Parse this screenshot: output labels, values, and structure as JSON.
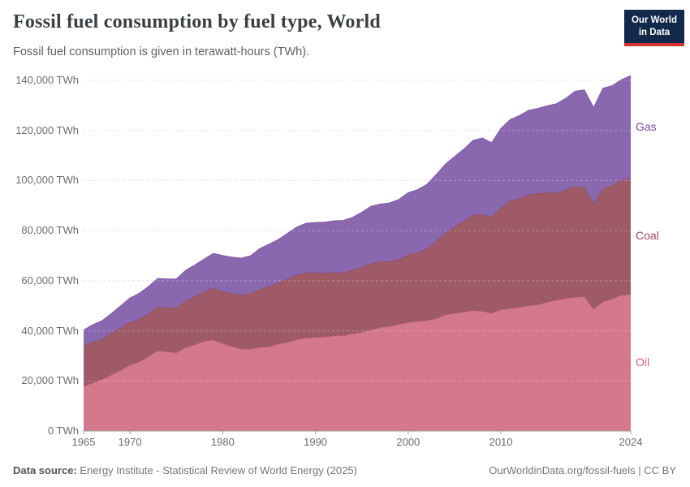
{
  "header": {
    "title": "Fossil fuel consumption by fuel type, World",
    "subtitle": "Fossil fuel consumption is given in terawatt-hours (TWh)."
  },
  "logo": {
    "line1": "Our World",
    "line2": "in Data"
  },
  "colors": {
    "background": "#ffffff",
    "title": "#3a3f44",
    "subtitle": "#5f6163",
    "axis_label": "#6c6c6c",
    "gridline": "#dcdcdc",
    "grid_overlay": "rgba(255,255,255,0.3)",
    "axis_line": "#999999",
    "tick_mark": "#999999",
    "logo_background": "#12294c",
    "logo_accent_red": "#d0342e",
    "footer_text": "#757575"
  },
  "chart_data": {
    "type": "area",
    "stacked": true,
    "title": "Fossil fuel consumption by fuel type, World",
    "xlabel": "",
    "ylabel": "TWh",
    "grid": true,
    "legend_position": "right",
    "xlim": [
      1965,
      2024
    ],
    "ylim": [
      0,
      140000
    ],
    "x_ticks": [
      1965,
      1970,
      1980,
      1990,
      2000,
      2010,
      2024
    ],
    "x_tick_labels": [
      "1965",
      "1970",
      "1980",
      "1990",
      "2000",
      "2010",
      "2024"
    ],
    "y_ticks": [
      0,
      20000,
      40000,
      60000,
      80000,
      100000,
      120000,
      140000
    ],
    "y_tick_labels": [
      "0 TWh",
      "20,000 TWh",
      "40,000 TWh",
      "60,000 TWh",
      "80,000 TWh",
      "100,000 TWh",
      "120,000 TWh",
      "140,000 TWh"
    ],
    "x": [
      1965,
      1966,
      1967,
      1968,
      1969,
      1970,
      1971,
      1972,
      1973,
      1974,
      1975,
      1976,
      1977,
      1978,
      1979,
      1980,
      1981,
      1982,
      1983,
      1984,
      1985,
      1986,
      1987,
      1988,
      1989,
      1990,
      1991,
      1992,
      1993,
      1994,
      1995,
      1996,
      1997,
      1998,
      1999,
      2000,
      2001,
      2002,
      2003,
      2004,
      2005,
      2006,
      2007,
      2008,
      2009,
      2010,
      2011,
      2012,
      2013,
      2014,
      2015,
      2016,
      2017,
      2018,
      2019,
      2020,
      2021,
      2022,
      2023,
      2024
    ],
    "series": [
      {
        "name": "Oil",
        "fill": "#d4798b",
        "edge": "#c4607a",
        "label_color": "#d0647e",
        "values": [
          17887,
          19201,
          20619,
          22382,
          24244,
          26390,
          27645,
          29700,
          32043,
          31616,
          31167,
          33361,
          34485,
          35822,
          36338,
          34924,
          33734,
          32771,
          32667,
          33461,
          33611,
          34697,
          35363,
          36441,
          37099,
          37380,
          37513,
          38060,
          37983,
          38843,
          39404,
          40348,
          41374,
          41746,
          42626,
          43364,
          43736,
          44077,
          44897,
          46368,
          47005,
          47497,
          48135,
          47796,
          47043,
          48439,
          48914,
          49411,
          49980,
          50384,
          51415,
          52220,
          52940,
          53379,
          53619,
          48598,
          51549,
          52745,
          54243,
          54564
        ]
      },
      {
        "name": "Coal",
        "fill": "#9e5a66",
        "edge": "#8c4553",
        "label_color": "#9c4a5c",
        "values": [
          16140,
          16370,
          16093,
          16530,
          16930,
          17084,
          17045,
          17161,
          17580,
          17585,
          17978,
          18640,
          19288,
          19742,
          20678,
          20858,
          21100,
          21530,
          22209,
          23077,
          24161,
          24570,
          25399,
          26000,
          26067,
          25905,
          25439,
          25328,
          25218,
          25466,
          26065,
          26522,
          26375,
          26023,
          25929,
          27090,
          27594,
          28539,
          30887,
          32700,
          34468,
          36283,
          38068,
          38703,
          38518,
          40684,
          43124,
          43485,
          44422,
          44485,
          43689,
          42880,
          43382,
          44249,
          43869,
          42343,
          44979,
          45352,
          45917,
          46213
        ]
      },
      {
        "name": "Gas",
        "fill": "#8a68af",
        "edge": "#7a53a6",
        "label_color": "#8148a5",
        "values": [
          6304,
          6867,
          7377,
          8027,
          8788,
          9614,
          10261,
          10862,
          11318,
          11528,
          11526,
          12179,
          12528,
          13097,
          13911,
          14241,
          14557,
          14694,
          15084,
          16327,
          16856,
          17176,
          18170,
          19000,
          19789,
          19970,
          20427,
          20519,
          20874,
          20975,
          21840,
          22869,
          22866,
          23292,
          23914,
          24708,
          25009,
          25793,
          26482,
          27445,
          28086,
          28771,
          29828,
          30487,
          29529,
          31689,
          32321,
          33065,
          33627,
          33935,
          34706,
          35608,
          36530,
          38041,
          38690,
          38167,
          40342,
          39755,
          40130,
          41107
        ]
      }
    ]
  },
  "footer": {
    "datasource_label": "Data source:",
    "datasource_value": " Energy Institute - Statistical Review of World Energy (2025)",
    "credit": "OurWorldinData.org/fossil-fuels | CC BY"
  }
}
